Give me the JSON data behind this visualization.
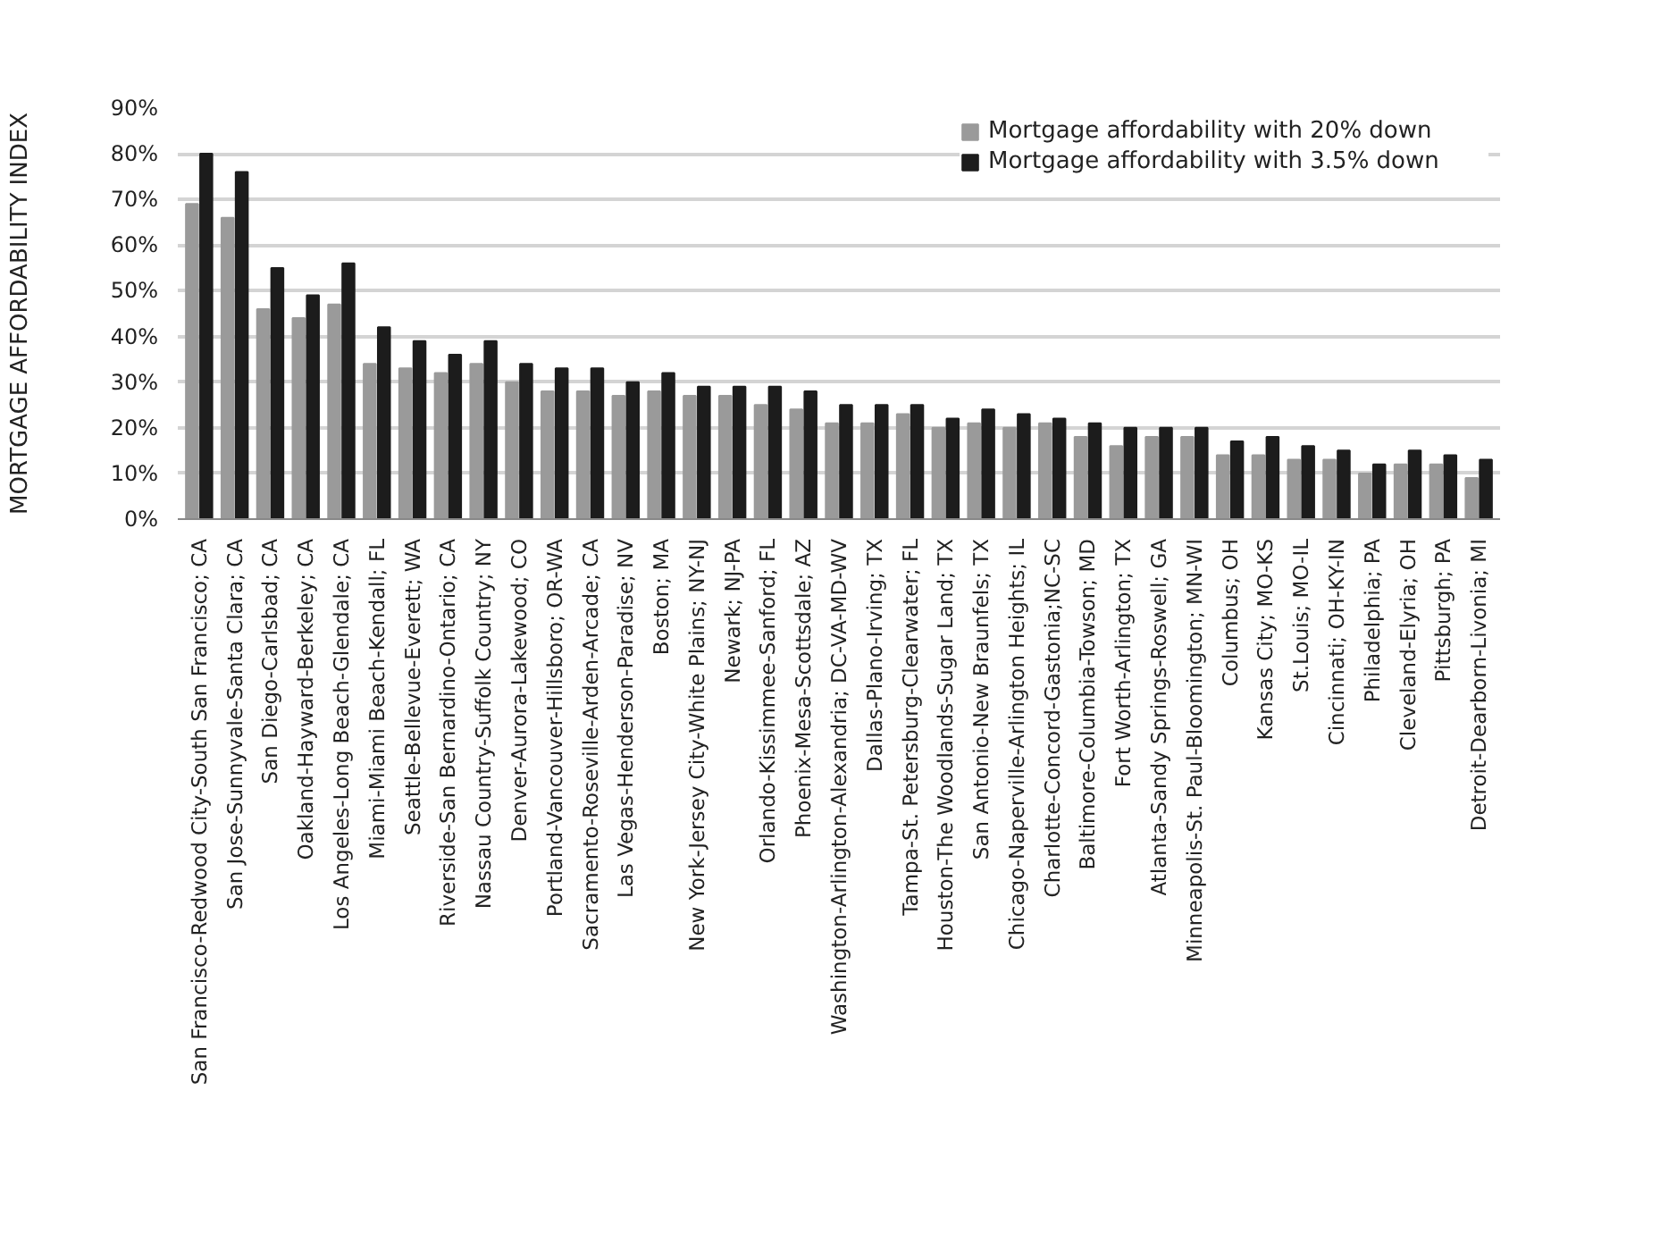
{
  "chart_data": {
    "type": "bar",
    "ylabel": "MORTGAGE AFFORDABILITY INDEX",
    "categories": [
      "San Francisco-Redwood City-South San Francisco; CA",
      "San Jose-Sunnyvale-Santa Clara; CA",
      "San Diego-Carlsbad; CA",
      "Oakland-Hayward-Berkeley; CA",
      "Los Angeles-Long Beach-Glendale; CA",
      "Miami-Miami Beach-Kendall; FL",
      "Seattle-Bellevue-Everett; WA",
      "Riverside-San Bernardino-Ontario; CA",
      "Nassau Country-Suffolk Country; NY",
      "Denver-Aurora-Lakewood; CO",
      "Portland-Vancouver-Hillsboro; OR-WA",
      "Sacramento-Roseville-Arden-Arcade; CA",
      "Las Vegas-Henderson-Paradise; NV",
      "Boston; MA",
      "New York-Jersey City-White Plains; NY-NJ",
      "Newark; NJ-PA",
      "Orlando-Kissimmee-Sanford; FL",
      "Phoenix-Mesa-Scottsdale; AZ",
      "Washington-Arlington-Alexandria; DC-VA-MD-WV",
      "Dallas-Plano-Irving; TX",
      "Tampa-St. Petersburg-Clearwater; FL",
      "Houston-The Woodlands-Sugar Land; TX",
      "San Antonio-New Braunfels; TX",
      "Chicago-Naperville-Arlington Heights; IL",
      "Charlotte-Concord-Gastonia;NC-SC",
      "Baltimore-Columbia-Towson; MD",
      "Fort Worth-Arlington; TX",
      "Atlanta-Sandy Springs-Roswell; GA",
      "Minneapolis-St. Paul-Bloomington; MN-WI",
      "Columbus; OH",
      "Kansas City; MO-KS",
      "St.Louis; MO-IL",
      "Cincinnati; OH-KY-IN",
      "Philadelphia; PA",
      "Cleveland-Elyria; OH",
      "Pittsburgh; PA",
      "Detroit-Dearborn-Livonia; MI"
    ],
    "series": [
      {
        "name": "Mortgage affordability with 20% down",
        "color": "#9a9a9a",
        "values": [
          69,
          66,
          46,
          44,
          47,
          34,
          33,
          32,
          34,
          30,
          28,
          28,
          27,
          28,
          27,
          27,
          25,
          24,
          21,
          21,
          23,
          20,
          21,
          20,
          21,
          18,
          16,
          18,
          18,
          14,
          14,
          13,
          13,
          10,
          12,
          12,
          9
        ]
      },
      {
        "name": "Mortgage affordability with 3.5% down",
        "color": "#1c1c1c",
        "values": [
          80,
          76,
          55,
          49,
          56,
          42,
          39,
          36,
          39,
          34,
          33,
          33,
          30,
          32,
          29,
          29,
          29,
          28,
          25,
          25,
          25,
          22,
          24,
          23,
          22,
          21,
          20,
          20,
          20,
          17,
          18,
          16,
          15,
          12,
          15,
          14,
          13
        ]
      }
    ],
    "ylim": [
      0,
      90
    ],
    "yticks": [
      {
        "value": 0,
        "label": "0%"
      },
      {
        "value": 10,
        "label": "10%"
      },
      {
        "value": 20,
        "label": "20%"
      },
      {
        "value": 30,
        "label": "30%"
      },
      {
        "value": 40,
        "label": "40%"
      },
      {
        "value": 50,
        "label": "50%"
      },
      {
        "value": 60,
        "label": "60%"
      },
      {
        "value": 70,
        "label": "70%"
      },
      {
        "value": 80,
        "label": "80%"
      },
      {
        "value": 90,
        "label": "90%"
      }
    ],
    "grid": "y",
    "legend": "top right"
  }
}
